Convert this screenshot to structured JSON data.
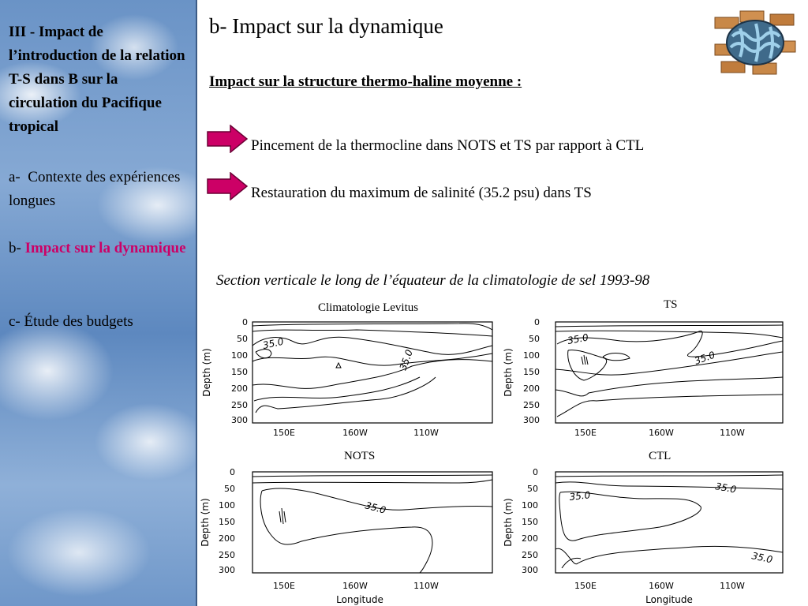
{
  "sidebar": {
    "title": "III - Impact de l’introduction de la relation T-S dans B sur la circulation du Pacifique tropical",
    "item_a_prefix": "a-",
    "item_a_label": "Contexte des expériences longues",
    "item_b_prefix": "b-",
    "item_b_label": "Impact sur la dynamique",
    "item_c_label": "c- Étude des budgets"
  },
  "main": {
    "title": "b- Impact sur la dynamique",
    "subtitle": "Impact sur la structure thermo-haline moyenne :",
    "bullets": [
      "Pincement de la thermocline dans NOTS et TS par rapport à CTL",
      "Restauration du maximum de salinité (35.2 psu) dans TS"
    ],
    "section_caption": "Section verticale le long de l’équateur de la climatologie de sel 1993-98"
  },
  "colors": {
    "accent_pink": "#cc0066",
    "arrow_fill": "#cc0066",
    "sidebar_sky": "#6a93c6"
  },
  "icons": {
    "bullet_arrow": "right-arrow-icon",
    "logo": "brick-globe-logo-icon"
  },
  "chart_data": [
    {
      "type": "contour",
      "title": "Climatologie Levitus",
      "xlabel": "",
      "ylabel": "Depth (m)",
      "x_ticks": [
        "150E",
        "160W",
        "110W"
      ],
      "y_ticks": [
        "0",
        "50",
        "100",
        "150",
        "200",
        "250",
        "300"
      ],
      "ylim": [
        300,
        0
      ],
      "contour_labels": [
        "35.0",
        "35.0"
      ]
    },
    {
      "type": "contour",
      "title": "TS",
      "xlabel": "",
      "ylabel": "Depth (m)",
      "x_ticks": [
        "150E",
        "160W",
        "110W"
      ],
      "y_ticks": [
        "0",
        "50",
        "100",
        "150",
        "200",
        "250",
        "300"
      ],
      "ylim": [
        300,
        0
      ],
      "contour_labels": [
        "35.0",
        "35.0"
      ]
    },
    {
      "type": "contour",
      "title": "NOTS",
      "xlabel": "Longitude",
      "ylabel": "Depth (m)",
      "x_ticks": [
        "150E",
        "160W",
        "110W"
      ],
      "y_ticks": [
        "0",
        "50",
        "100",
        "150",
        "200",
        "250",
        "300"
      ],
      "ylim": [
        300,
        0
      ],
      "contour_labels": [
        "35.0"
      ]
    },
    {
      "type": "contour",
      "title": "CTL",
      "xlabel": "Longitude",
      "ylabel": "Depth (m)",
      "x_ticks": [
        "150E",
        "160W",
        "110W"
      ],
      "y_ticks": [
        "0",
        "50",
        "100",
        "150",
        "200",
        "250",
        "300"
      ],
      "ylim": [
        300,
        0
      ],
      "contour_labels": [
        "35.0",
        "35.0",
        "35.0"
      ]
    }
  ]
}
